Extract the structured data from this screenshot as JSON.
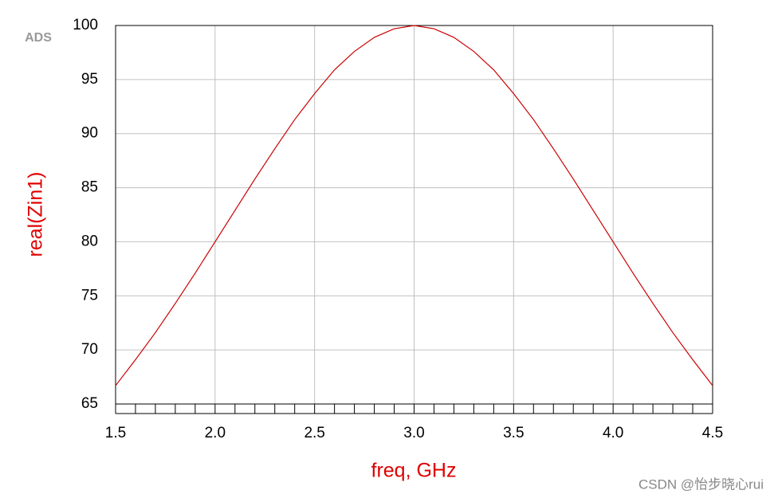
{
  "chart_data": {
    "type": "line",
    "logo": "ADS",
    "xlabel": "freq, GHz",
    "ylabel": "real(Zin1)",
    "watermark": "CSDN @怡步晓心rui",
    "x": [
      1.5,
      1.6,
      1.7,
      1.8,
      1.9,
      2.0,
      2.1,
      2.2,
      2.3,
      2.4,
      2.5,
      2.6,
      2.7,
      2.8,
      2.9,
      3.0,
      3.1,
      3.2,
      3.3,
      3.4,
      3.5,
      3.6,
      3.7,
      3.8,
      3.9,
      4.0,
      4.1,
      4.2,
      4.3,
      4.4,
      4.5
    ],
    "series": [
      {
        "name": "real(Zin1)",
        "color": "#cc0000",
        "values": [
          66.7,
          69.1,
          71.6,
          74.3,
          77.1,
          80.0,
          82.9,
          85.8,
          88.6,
          91.3,
          93.7,
          95.9,
          97.6,
          98.9,
          99.7,
          100.0,
          99.7,
          98.9,
          97.6,
          95.9,
          93.7,
          91.3,
          88.6,
          85.8,
          82.9,
          80.0,
          77.1,
          74.3,
          71.6,
          69.1,
          66.7
        ]
      }
    ],
    "xlim": [
      1.5,
      4.5
    ],
    "xticks": [
      1.5,
      {
        "value": 2,
        "label": "2.0"
      },
      2.5,
      {
        "value": 3,
        "label": "3.0"
      },
      3.5,
      {
        "value": 4,
        "label": "4.0"
      },
      4.5
    ],
    "xminorticks": [
      1.6,
      1.7,
      1.8,
      1.9,
      2.1,
      2.2,
      2.3,
      2.4,
      2.6,
      2.7,
      2.8,
      2.9,
      3.1,
      3.2,
      3.3,
      3.4,
      3.6,
      3.7,
      3.8,
      3.9,
      4.1,
      4.2,
      4.3,
      4.4
    ],
    "ylim": [
      65,
      100
    ],
    "yticks": [
      65,
      70,
      75,
      80,
      85,
      90,
      95,
      100
    ],
    "grid": true
  }
}
